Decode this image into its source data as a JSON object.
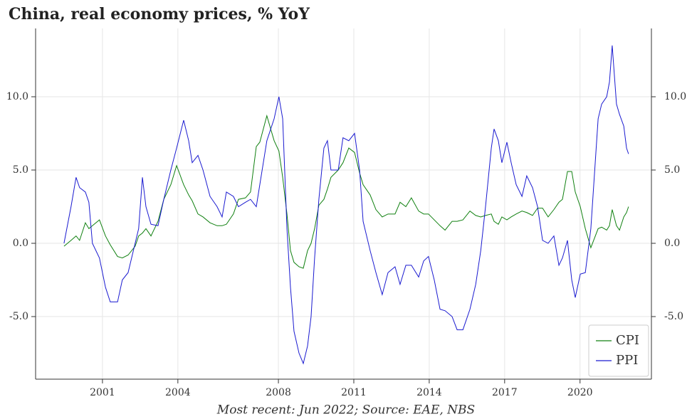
{
  "chart_data": {
    "type": "line",
    "title": "China, real economy prices, % YoY",
    "caption": "Most recent: Jun 2022; Source: EAE, NBS",
    "x": [
      1999.47,
      1999.75,
      1999.95,
      2000.09,
      2000.32,
      2000.46,
      2000.6,
      2000.88,
      2001.12,
      2001.31,
      2001.6,
      2001.79,
      2002.02,
      2002.3,
      2002.44,
      2002.59,
      2002.73,
      2002.93,
      2003.21,
      2003.44,
      2003.72,
      2003.95,
      2004.23,
      2004.43,
      2004.57,
      2004.8,
      2005.0,
      2005.28,
      2005.56,
      2005.76,
      2005.93,
      2006.21,
      2006.41,
      2006.69,
      2006.89,
      2007.12,
      2007.26,
      2007.54,
      2007.83,
      2008.02,
      2008.17,
      2008.34,
      2008.48,
      2008.62,
      2008.82,
      2008.99,
      2009.16,
      2009.3,
      2009.44,
      2009.61,
      2009.81,
      2009.95,
      2010.09,
      2010.38,
      2010.57,
      2010.8,
      2011.03,
      2011.23,
      2011.37,
      2011.65,
      2011.88,
      2012.13,
      2012.36,
      2012.64,
      2012.84,
      2013.07,
      2013.29,
      2013.58,
      2013.78,
      2013.97,
      2014.2,
      2014.43,
      2014.63,
      2014.91,
      2015.11,
      2015.34,
      2015.62,
      2015.85,
      2016.05,
      2016.24,
      2016.47,
      2016.58,
      2016.75,
      2016.89,
      2017.09,
      2017.26,
      2017.46,
      2017.69,
      2017.88,
      2018.11,
      2018.31,
      2018.51,
      2018.73,
      2018.96,
      2019.16,
      2019.3,
      2019.5,
      2019.67,
      2019.81,
      2020.01,
      2020.21,
      2020.43,
      2020.72,
      2020.86,
      2021.06,
      2021.17,
      2021.28,
      2021.45,
      2021.57,
      2021.74,
      2021.85,
      2021.93
    ],
    "series": [
      {
        "name": "CPI",
        "color": "#108010",
        "values": [
          -0.2,
          0.2,
          0.5,
          0.2,
          1.4,
          1.0,
          1.2,
          1.6,
          0.5,
          -0.1,
          -0.9,
          -1.0,
          -0.8,
          -0.2,
          0.5,
          0.7,
          1.0,
          0.5,
          1.5,
          3.0,
          4.0,
          5.3,
          4.0,
          3.3,
          2.9,
          2.0,
          1.8,
          1.4,
          1.2,
          1.2,
          1.3,
          2.0,
          3.0,
          3.1,
          3.5,
          6.6,
          6.9,
          8.7,
          7.0,
          6.3,
          4.5,
          2.0,
          -0.5,
          -1.3,
          -1.6,
          -1.7,
          -0.5,
          0.0,
          1.0,
          2.6,
          3.0,
          3.7,
          4.5,
          5.0,
          5.5,
          6.5,
          6.2,
          4.8,
          4.0,
          3.3,
          2.3,
          1.8,
          2.0,
          2.0,
          2.8,
          2.5,
          3.1,
          2.2,
          2.0,
          2.0,
          1.6,
          1.2,
          0.9,
          1.5,
          1.5,
          1.6,
          2.2,
          1.9,
          1.8,
          1.9,
          2.0,
          1.5,
          1.3,
          1.8,
          1.6,
          1.8,
          2.0,
          2.2,
          2.1,
          1.9,
          2.4,
          2.4,
          1.8,
          2.3,
          2.8,
          3.0,
          4.9,
          4.9,
          3.5,
          2.5,
          1.0,
          -0.3,
          1.0,
          1.1,
          0.9,
          1.2,
          2.3,
          1.2,
          0.9,
          1.8,
          2.1,
          2.5
        ]
      },
      {
        "name": "PPI",
        "color": "#1a1ad0",
        "values": [
          0.0,
          2.5,
          4.5,
          3.8,
          3.5,
          2.8,
          0.0,
          -1.0,
          -3.0,
          -4.0,
          -4.0,
          -2.5,
          -2.0,
          0.0,
          1.0,
          4.5,
          2.5,
          1.3,
          1.2,
          3.0,
          5.0,
          6.5,
          8.4,
          7.0,
          5.5,
          6.0,
          5.0,
          3.2,
          2.5,
          1.8,
          3.5,
          3.2,
          2.5,
          2.8,
          3.0,
          2.5,
          4.0,
          7.0,
          8.5,
          10.0,
          8.5,
          1.0,
          -3.0,
          -6.0,
          -7.5,
          -8.2,
          -7.0,
          -5.0,
          -1.0,
          3.0,
          6.5,
          7.0,
          5.0,
          5.0,
          7.2,
          7.0,
          7.5,
          5.0,
          1.5,
          -0.5,
          -2.0,
          -3.5,
          -2.0,
          -1.6,
          -2.8,
          -1.5,
          -1.5,
          -2.3,
          -1.2,
          -0.9,
          -2.5,
          -4.5,
          -4.6,
          -5.0,
          -5.9,
          -5.9,
          -4.5,
          -2.8,
          -0.5,
          2.5,
          6.5,
          7.8,
          7.0,
          5.5,
          6.9,
          5.5,
          4.0,
          3.2,
          4.6,
          3.8,
          2.5,
          0.2,
          0.0,
          0.5,
          -1.5,
          -1.0,
          0.2,
          -2.5,
          -3.7,
          -2.1,
          -2.0,
          1.0,
          8.5,
          9.5,
          10.0,
          11.0,
          13.5,
          9.5,
          8.8,
          8.0,
          6.5,
          6.1
        ]
      }
    ],
    "xlim": [
      1998.34,
      2022.84
    ],
    "xticks": [
      2001,
      2004,
      2008,
      2011,
      2014,
      2017,
      2020
    ],
    "ylim": [
      -9.27,
      14.66
    ],
    "yticks": [
      {
        "value": -5,
        "label": "-5.0"
      },
      {
        "value": 0,
        "label": "0.0"
      },
      {
        "value": 5,
        "label": "5.0"
      },
      {
        "value": 10,
        "label": "10.0"
      }
    ],
    "grid": true,
    "legend": "lower right"
  }
}
